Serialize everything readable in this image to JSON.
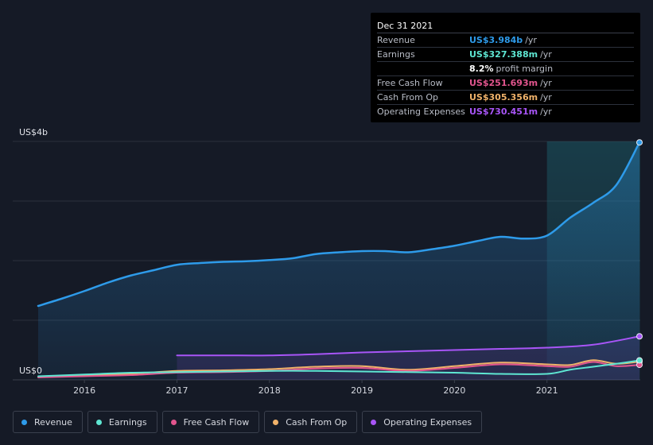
{
  "tooltip": {
    "date": "Dec 31 2021",
    "rows": [
      {
        "label": "Revenue",
        "value": "US$3.984b",
        "unit": "/yr",
        "color": "#2e9bea"
      },
      {
        "label": "Earnings",
        "value": "US$327.388m",
        "unit": "/yr",
        "color": "#5ee6d2"
      },
      {
        "label": "",
        "value": "8.2%",
        "unit": "profit margin",
        "color": "#ffffff"
      },
      {
        "label": "Free Cash Flow",
        "value": "US$251.693m",
        "unit": "/yr",
        "color": "#e2558e"
      },
      {
        "label": "Cash From Op",
        "value": "US$305.356m",
        "unit": "/yr",
        "color": "#f0b26a"
      },
      {
        "label": "Operating Expenses",
        "value": "US$730.451m",
        "unit": "/yr",
        "color": "#a855f7"
      }
    ]
  },
  "legend": [
    {
      "label": "Revenue",
      "color": "#2e9bea"
    },
    {
      "label": "Earnings",
      "color": "#5ee6d2"
    },
    {
      "label": "Free Cash Flow",
      "color": "#e2558e"
    },
    {
      "label": "Cash From Op",
      "color": "#f0b26a"
    },
    {
      "label": "Operating Expenses",
      "color": "#a855f7"
    }
  ],
  "chart_data": {
    "type": "area",
    "y_top_label": "US$4b",
    "y_bottom_label": "US$0",
    "ylim": [
      0,
      4
    ],
    "y_unit": "US$ billions",
    "xlim": [
      2015.5,
      2022.0
    ],
    "x_ticks": [
      2016,
      2017,
      2018,
      2019,
      2020,
      2021
    ],
    "highlight_from": 2021.0,
    "series": [
      {
        "name": "Revenue",
        "color": "#2e9bea",
        "fill": true,
        "x": [
          2015.5,
          2015.75,
          2016.0,
          2016.25,
          2016.5,
          2016.75,
          2017.0,
          2017.25,
          2017.5,
          2017.75,
          2018.0,
          2018.25,
          2018.5,
          2018.75,
          2019.0,
          2019.25,
          2019.5,
          2019.75,
          2020.0,
          2020.25,
          2020.5,
          2020.75,
          2021.0,
          2021.25,
          2021.5,
          2021.75,
          2022.0
        ],
        "y": [
          1.24,
          1.36,
          1.49,
          1.63,
          1.75,
          1.84,
          1.93,
          1.96,
          1.98,
          1.99,
          2.01,
          2.04,
          2.11,
          2.14,
          2.16,
          2.16,
          2.14,
          2.19,
          2.25,
          2.33,
          2.4,
          2.37,
          2.42,
          2.72,
          2.97,
          3.27,
          3.984
        ]
      },
      {
        "name": "Operating Expenses",
        "color": "#a855f7",
        "fill": true,
        "x": [
          2017.0,
          2017.5,
          2018.0,
          2018.5,
          2019.0,
          2019.5,
          2020.0,
          2020.5,
          2021.0,
          2021.5,
          2022.0
        ],
        "y": [
          0.41,
          0.41,
          0.41,
          0.43,
          0.46,
          0.48,
          0.5,
          0.52,
          0.54,
          0.59,
          0.73
        ]
      },
      {
        "name": "Cash From Op",
        "color": "#f0b26a",
        "fill": false,
        "x": [
          2015.5,
          2016.0,
          2016.5,
          2017.0,
          2017.5,
          2018.0,
          2018.5,
          2019.0,
          2019.5,
          2020.0,
          2020.5,
          2021.0,
          2021.25,
          2021.5,
          2021.75,
          2022.0
        ],
        "y": [
          0.05,
          0.07,
          0.1,
          0.15,
          0.16,
          0.18,
          0.22,
          0.23,
          0.17,
          0.23,
          0.29,
          0.26,
          0.25,
          0.33,
          0.27,
          0.305
        ]
      },
      {
        "name": "Free Cash Flow",
        "color": "#e2558e",
        "fill": false,
        "x": [
          2015.5,
          2016.0,
          2016.5,
          2017.0,
          2017.5,
          2018.0,
          2018.5,
          2019.0,
          2019.5,
          2020.0,
          2020.5,
          2021.0,
          2021.25,
          2021.5,
          2021.75,
          2022.0
        ],
        "y": [
          0.04,
          0.06,
          0.08,
          0.12,
          0.13,
          0.15,
          0.19,
          0.2,
          0.15,
          0.2,
          0.26,
          0.23,
          0.22,
          0.3,
          0.23,
          0.252
        ]
      },
      {
        "name": "Earnings",
        "color": "#5ee6d2",
        "fill": false,
        "x": [
          2015.5,
          2016.0,
          2016.5,
          2017.0,
          2017.5,
          2018.0,
          2018.5,
          2019.0,
          2019.5,
          2020.0,
          2020.5,
          2021.0,
          2021.25,
          2021.5,
          2021.75,
          2022.0
        ],
        "y": [
          0.06,
          0.09,
          0.12,
          0.13,
          0.14,
          0.15,
          0.15,
          0.14,
          0.13,
          0.12,
          0.1,
          0.1,
          0.17,
          0.22,
          0.27,
          0.327
        ]
      }
    ]
  }
}
